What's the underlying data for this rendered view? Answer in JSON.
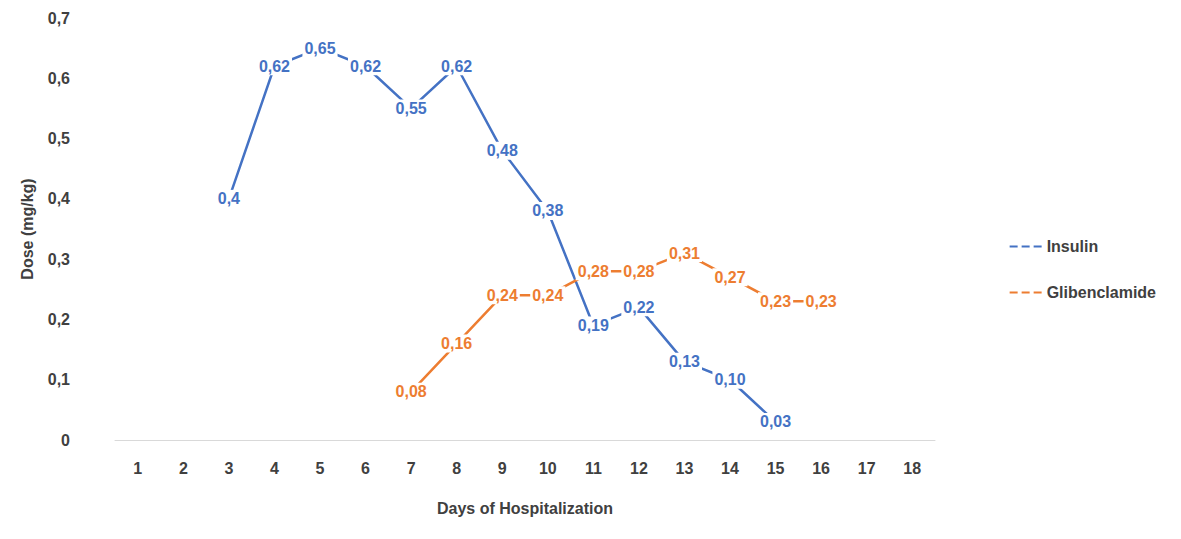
{
  "chart_data": {
    "type": "line",
    "x_label": "Days of Hospitalization",
    "y_label": "Dose (mg/kg)",
    "categories": [
      "1",
      "2",
      "3",
      "4",
      "5",
      "6",
      "7",
      "8",
      "9",
      "10",
      "11",
      "12",
      "13",
      "14",
      "15",
      "16",
      "17",
      "18"
    ],
    "series": [
      {
        "name": "Insulin",
        "color": "#4472c4",
        "line_style": "solid",
        "marker": "none",
        "values": [
          null,
          null,
          0.4,
          0.62,
          0.65,
          0.62,
          0.55,
          0.62,
          0.48,
          0.38,
          0.19,
          0.22,
          0.13,
          0.1,
          0.03,
          null,
          null,
          null
        ],
        "value_labels": [
          null,
          null,
          "0,4",
          "0,62",
          "0,65",
          "0,62",
          "0,55",
          "0,62",
          "0,48",
          "0,38",
          "0,19",
          "0,22",
          "0,13",
          "0,10",
          "0,03",
          null,
          null,
          null
        ]
      },
      {
        "name": "Glibenclamide",
        "color": "#ed7d31",
        "line_style": "solid",
        "marker": "none",
        "values": [
          null,
          null,
          null,
          null,
          null,
          null,
          0.08,
          0.16,
          0.24,
          0.24,
          0.28,
          0.28,
          0.31,
          0.27,
          0.23,
          0.23,
          null,
          null
        ],
        "value_labels": [
          null,
          null,
          null,
          null,
          null,
          null,
          "0,08",
          "0,16",
          "0,24",
          "0,24",
          "0,28",
          "0,28",
          "0,31",
          "0,27",
          "0,23",
          "0,23",
          null,
          null
        ]
      }
    ],
    "ylim": [
      0,
      0.7
    ],
    "yticks": [
      0,
      {
        "value": 0.1,
        "label": "0,1"
      },
      {
        "value": 0.2,
        "label": "0,2"
      },
      {
        "value": 0.3,
        "label": "0,3"
      },
      {
        "value": 0.4,
        "label": "0,4"
      },
      {
        "value": 0.5,
        "label": "0,5"
      },
      {
        "value": 0.6,
        "label": "0,6"
      },
      {
        "value": 0.7,
        "label": "0,7"
      }
    ],
    "grid": false,
    "legend": "right",
    "data_labels": true
  }
}
